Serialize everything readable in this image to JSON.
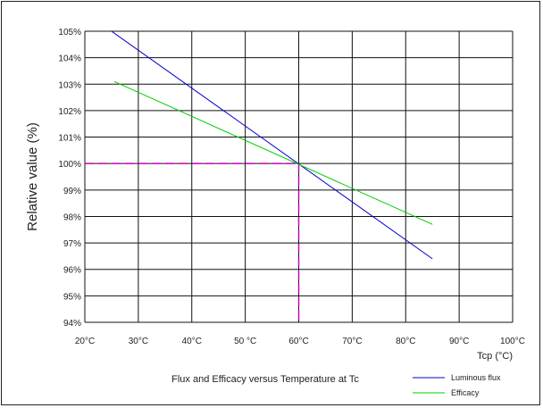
{
  "chart_data": {
    "type": "line",
    "title": "Flux and Efficacy versus Temperature at Tc",
    "xlabel": "Tcp (°C)",
    "ylabel": "Relative value (%)",
    "xlim": [
      20,
      100
    ],
    "ylim": [
      94,
      105
    ],
    "x_ticks": [
      20,
      30,
      40,
      50,
      60,
      70,
      80,
      90,
      100
    ],
    "x_tick_labels": [
      "20°C",
      "30°C",
      "40°C",
      "50 °C",
      "60°C",
      "70°C",
      "80°C",
      "90°C",
      "100°C"
    ],
    "y_ticks": [
      94,
      95,
      96,
      97,
      98,
      99,
      100,
      101,
      102,
      103,
      104,
      105
    ],
    "y_tick_labels": [
      "94%",
      "95%",
      "96%",
      "97%",
      "98%",
      "99%",
      "100%",
      "101%",
      "102%",
      "103%",
      "104%",
      "105%"
    ],
    "grid": true,
    "legend_position": "bottom-right",
    "series": [
      {
        "name": "Luminous flux",
        "color": "#0000cc",
        "x": [
          25,
          85
        ],
        "y": [
          105,
          96.4
        ]
      },
      {
        "name": "Efficacy",
        "color": "#00cc00",
        "x": [
          25.5,
          85
        ],
        "y": [
          103.1,
          97.7
        ]
      }
    ],
    "reference": {
      "x": 60,
      "y": 100,
      "color": "#cc00cc",
      "style": "dashed"
    }
  }
}
